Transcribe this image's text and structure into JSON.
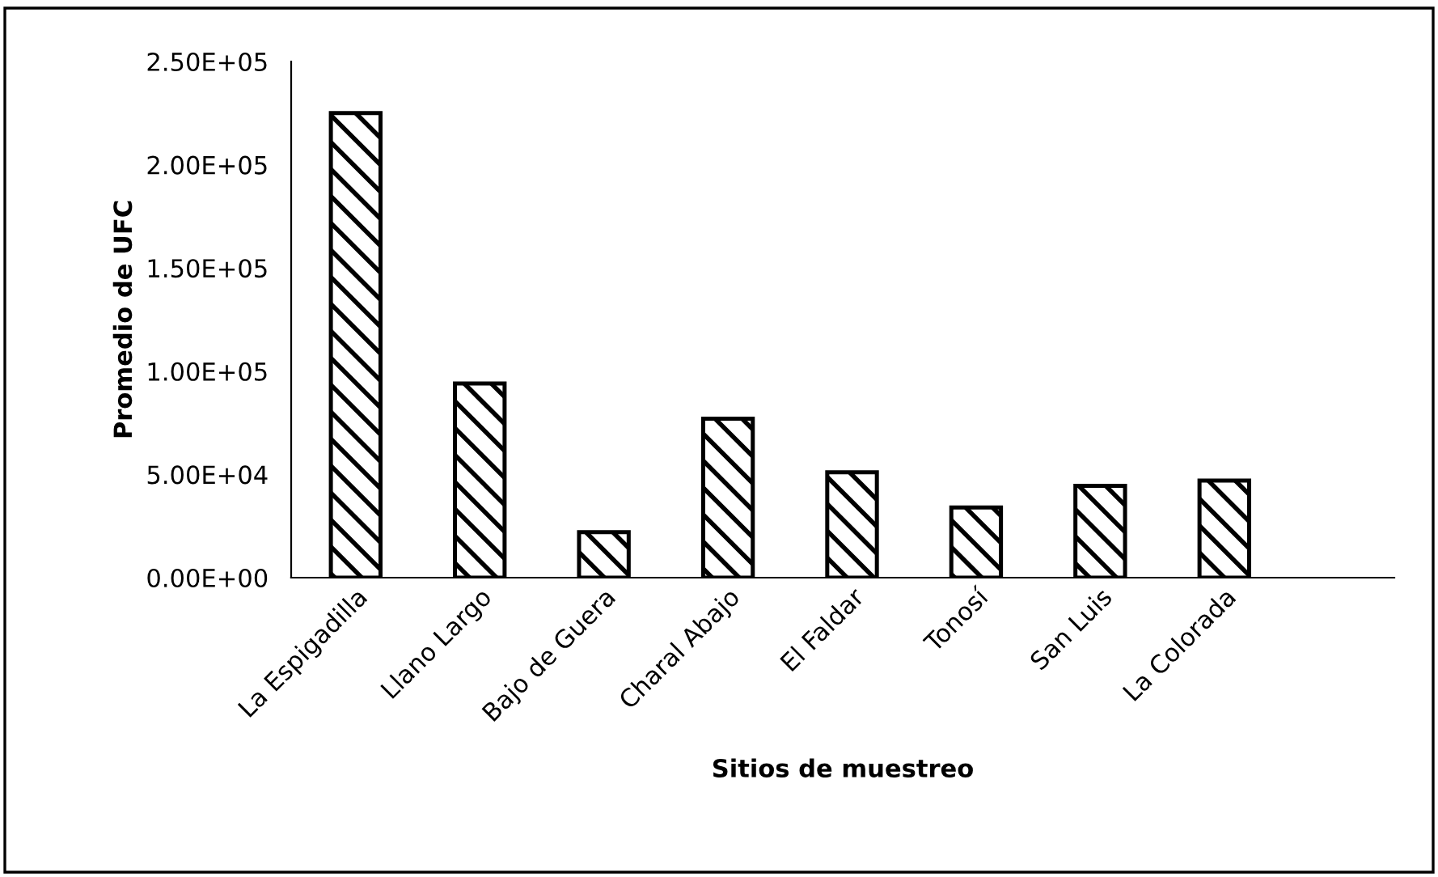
{
  "chart_data": {
    "type": "bar",
    "xlabel": "Sitios de muestreo",
    "ylabel": "Promedio de UFC",
    "categories": [
      "La Espigadilla",
      "Llano Largo",
      "Bajo de Guera",
      "Charal Abajo",
      "El Faldar",
      "Tonosí",
      "San Luis",
      "La Colorada"
    ],
    "values": [
      225000,
      94000,
      22000,
      77000,
      51000,
      34000,
      44500,
      47000
    ],
    "color": "#000000",
    "ylim": [
      0,
      250000
    ],
    "yticks": [
      {
        "value": 0,
        "label": "0.00E+00"
      },
      {
        "value": 50000,
        "label": "5.00E+04"
      },
      {
        "value": 100000,
        "label": "1.00E+05"
      },
      {
        "value": 150000,
        "label": "1.50E+05"
      },
      {
        "value": 200000,
        "label": "2.00E+05"
      },
      {
        "value": 250000,
        "label": "2.50E+05"
      }
    ],
    "grid": false,
    "legend": false
  }
}
